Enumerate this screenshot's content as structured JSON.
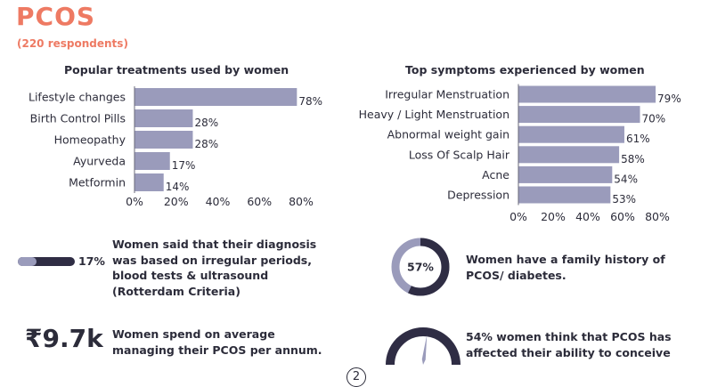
{
  "header": {
    "title": "PCOS",
    "subtitle": "(220 respondents)"
  },
  "colors": {
    "accent": "#ee7a63",
    "bar": "#9a9bbb",
    "dark": "#2f2d44",
    "text": "#2c2c3a"
  },
  "chart_data": [
    {
      "type": "bar",
      "orientation": "horizontal",
      "title": "Popular treatments used by women",
      "categories": [
        "Lifestyle changes",
        "Birth Control Pills",
        "Homeopathy",
        "Ayurveda",
        "Metformin"
      ],
      "values": [
        78,
        28,
        28,
        17,
        14
      ],
      "value_labels": [
        "78%",
        "28%",
        "28%",
        "17%",
        "14%"
      ],
      "xlim": [
        0,
        80
      ],
      "xticks": [
        "0%",
        "20%",
        "40%",
        "60%",
        "80%"
      ],
      "grid": false
    },
    {
      "type": "bar",
      "orientation": "horizontal",
      "title": "Top symptoms experienced by women",
      "categories": [
        "Irregular Menstruation",
        "Heavy / Light Menstruation",
        "Abnormal weight gain",
        "Loss Of Scalp Hair",
        "Acne",
        "Depression"
      ],
      "values": [
        79,
        70,
        61,
        58,
        54,
        53
      ],
      "value_labels": [
        "79%",
        "70%",
        "61%",
        "58%",
        "54%",
        "53%"
      ],
      "xlim": [
        0,
        80
      ],
      "xticks": [
        "0%",
        "20%",
        "40%",
        "60%",
        "80%"
      ],
      "grid": false
    }
  ],
  "stats": {
    "diagnosis": {
      "percent": 17,
      "label": "17%",
      "text": "Women said that their diagnosis was based on irregular periods, blood tests & ultrasound (Rotterdam Criteria)"
    },
    "spend": {
      "value": "₹9.7k",
      "text": "Women spend on average managing their PCOS per annum."
    },
    "family_history": {
      "percent": 57,
      "label": "57%",
      "text": "Women have a family history of PCOS/ diabetes."
    },
    "conceive": {
      "percent": 54,
      "text": "54% women think that PCOS has affected their ability to conceive"
    }
  },
  "page_number": "2"
}
